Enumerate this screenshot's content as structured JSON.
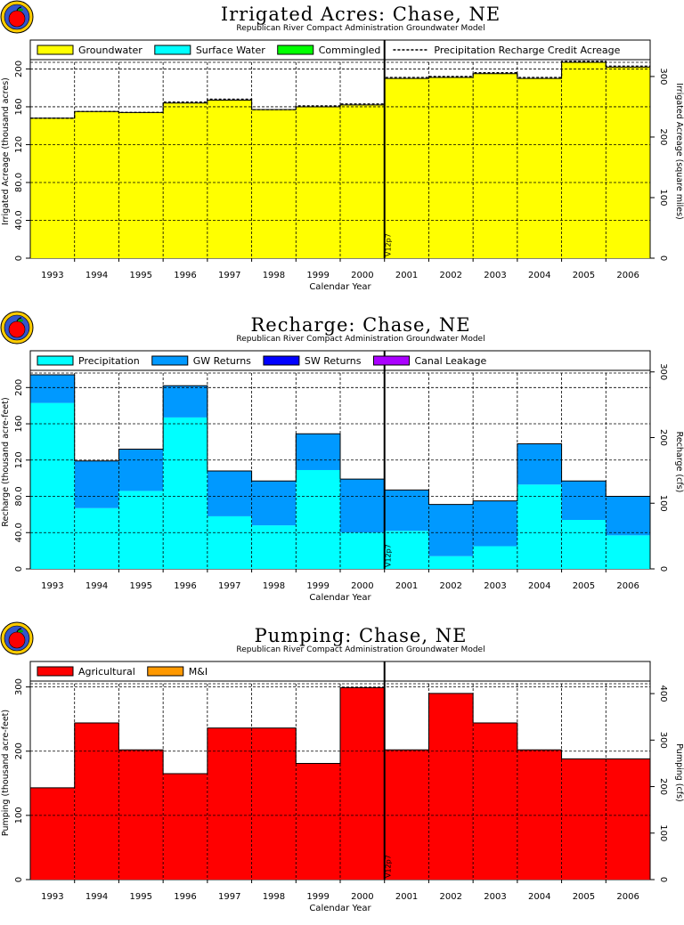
{
  "chart_data": [
    {
      "type": "bar",
      "title": "Irrigated Acres: Chase, NE",
      "subtitle": "Republican River Compact Administration Groundwater Model",
      "xlabel": "Calendar Year",
      "ylabel": "Irrigated Acreage (thousand acres)",
      "ylabel_right": "Irrigated Acreage (square miles)",
      "categories": [
        "1993",
        "1994",
        "1995",
        "1996",
        "1997",
        "1998",
        "1999",
        "2000",
        "2001",
        "2002",
        "2003",
        "2004",
        "2005",
        "2006"
      ],
      "ylim": [
        0,
        207
      ],
      "yticks": [
        0,
        40,
        80,
        120,
        160,
        200
      ],
      "ytick_labels": [
        "0",
        "40.0",
        "80.0",
        "120",
        "160",
        "200"
      ],
      "ylim_right": [
        0,
        323.4
      ],
      "yticks_right": [
        0,
        100,
        200,
        300
      ],
      "grid": true,
      "legend": "top",
      "series": [
        {
          "name": "Groundwater",
          "color": "#ffff00",
          "values": [
            148,
            155,
            154,
            164,
            167,
            157,
            160,
            162,
            190,
            191,
            195,
            190,
            207,
            202
          ]
        },
        {
          "name": "Surface Water",
          "color": "#00ffff",
          "values": [
            0,
            0,
            0,
            0,
            0,
            0,
            0,
            0,
            0,
            0,
            0,
            0,
            0,
            0
          ]
        },
        {
          "name": "Commingled",
          "color": "#00ff00",
          "values": [
            0,
            0,
            0,
            0,
            0,
            0,
            0,
            0,
            0,
            0,
            0,
            0,
            0,
            0
          ]
        }
      ],
      "line_series": {
        "name": "Precipitation Recharge Credit Acreage",
        "style": "dashed",
        "values": [
          148,
          155,
          154,
          165,
          168,
          157,
          161,
          163,
          191,
          192,
          196,
          191,
          208,
          203
        ]
      },
      "marker_label": "V12p7",
      "marker_after": "2000"
    },
    {
      "type": "bar",
      "title": "Recharge: Chase, NE",
      "subtitle": "Republican River Compact Administration Groundwater Model",
      "xlabel": "Calendar Year",
      "ylabel": "Recharge (thousand acre-feet)",
      "ylabel_right": "Recharge (cfs)",
      "categories": [
        "1993",
        "1994",
        "1995",
        "1996",
        "1997",
        "1998",
        "1999",
        "2000",
        "2001",
        "2002",
        "2003",
        "2004",
        "2005",
        "2006"
      ],
      "ylim": [
        0,
        216
      ],
      "yticks": [
        0,
        40,
        80,
        120,
        160,
        200
      ],
      "ytick_labels": [
        "0",
        "40.0",
        "80.0",
        "120",
        "160",
        "200"
      ],
      "ylim_right": [
        0,
        298.3
      ],
      "yticks_right": [
        0,
        100,
        200,
        300
      ],
      "grid": true,
      "legend": "top",
      "series": [
        {
          "name": "Precipitation",
          "color": "#00ffff",
          "values": [
            183,
            67,
            86,
            167,
            58,
            48,
            109,
            40,
            42,
            14,
            25,
            93,
            54,
            37
          ]
        },
        {
          "name": "GW Returns",
          "color": "#0099ff",
          "values": [
            31,
            52,
            46,
            35,
            50,
            49,
            40,
            59,
            45,
            57,
            50,
            45,
            43,
            43
          ]
        },
        {
          "name": "SW Returns",
          "color": "#0000ff",
          "values": [
            0,
            0,
            0,
            0,
            0,
            0,
            0,
            0,
            0,
            0,
            0,
            0,
            0,
            0
          ]
        },
        {
          "name": "Canal Leakage",
          "color": "#aa00ff",
          "values": [
            0,
            0,
            0,
            0,
            0,
            0,
            0,
            0,
            0,
            0,
            0,
            0,
            0,
            0
          ]
        }
      ],
      "marker_label": "V12p7",
      "marker_after": "2000"
    },
    {
      "type": "bar",
      "title": "Pumping: Chase, NE",
      "subtitle": "Republican River Compact Administration Groundwater Model",
      "xlabel": "Calendar Year",
      "ylabel": "Pumping (thousand acre-feet)",
      "ylabel_right": "Pumping (cfs)",
      "categories": [
        "1993",
        "1994",
        "1995",
        "1996",
        "1997",
        "1998",
        "1999",
        "2000",
        "2001",
        "2002",
        "2003",
        "2004",
        "2005",
        "2006"
      ],
      "ylim": [
        0,
        305
      ],
      "yticks": [
        0,
        100,
        200,
        300
      ],
      "ytick_labels": [
        "0",
        "100",
        "200",
        "300"
      ],
      "ylim_right": [
        0,
        421.2
      ],
      "yticks_right": [
        0,
        100,
        200,
        300,
        400
      ],
      "grid": true,
      "legend": "top",
      "series": [
        {
          "name": "Agricultural",
          "color": "#ff0000",
          "values": [
            143,
            244,
            202,
            165,
            236,
            236,
            181,
            299,
            202,
            290,
            244,
            202,
            188,
            188
          ]
        },
        {
          "name": "M&I",
          "color": "#ff9900",
          "values": [
            0,
            0,
            0,
            0,
            0,
            0,
            0,
            0,
            0,
            0,
            0,
            0,
            0,
            0
          ]
        }
      ],
      "marker_label": "V12p7",
      "marker_after": "2000"
    }
  ]
}
